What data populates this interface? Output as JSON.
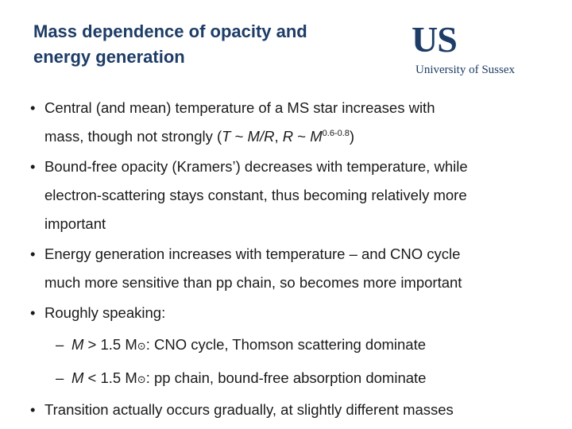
{
  "slide": {
    "title_line1": "Mass dependence of opacity and",
    "title_line2": "energy generation"
  },
  "logo": {
    "mark": "US",
    "text": "University of Sussex"
  },
  "bullets": {
    "b1": {
      "l1": "Central (and mean) temperature of a MS star increases with",
      "l2_pre": "mass, though not strongly (",
      "T": "T",
      "tilde1": " ~ ",
      "MR": "M/R",
      "comma": ", ",
      "R": "R",
      "tilde2": " ~ ",
      "M": "M",
      "exp": "0.6-0.8",
      "l2_post": ")"
    },
    "b2": {
      "l1": "Bound-free opacity (Kramers’) decreases with temperature, while",
      "l2": "electron-scattering stays constant, thus becoming relatively more",
      "l3": "important"
    },
    "b3": {
      "l1": "Energy generation increases with temperature – and CNO cycle",
      "l2": "much more sensitive than pp chain, so becomes more important"
    },
    "b4": {
      "l1": "Roughly speaking:"
    },
    "s1": {
      "M": "M",
      "op": " > 1.5 M",
      "sun": "⊙",
      "rest": ": CNO cycle, Thomson scattering dominate"
    },
    "s2": {
      "M": "M",
      "op": " < 1.5 M",
      "sun": "⊙",
      "rest": ": pp chain, bound-free absorption dominate"
    },
    "b5": {
      "l1": "Transition actually occurs gradually, at slightly different masses"
    }
  },
  "symbols": {
    "bullet": "•",
    "dash": "–"
  }
}
